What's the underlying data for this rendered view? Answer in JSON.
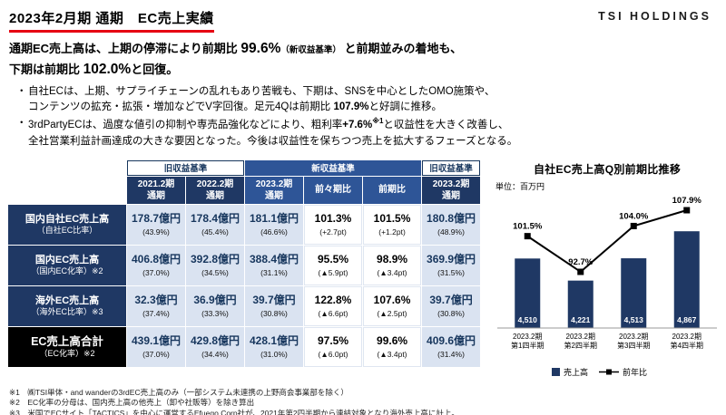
{
  "header": {
    "title": "2023年2月期 通期　EC売上実績",
    "logo": "TSI HOLDINGS"
  },
  "summary": {
    "headline1": [
      {
        "t": "通期EC売上高は、上期の停滞により前期比 "
      },
      {
        "t": "99.6%",
        "s": "big"
      },
      {
        "t": "（新収益基準）",
        "s": "small"
      },
      {
        "t": " と前期並みの着地も、"
      }
    ],
    "headline2": [
      {
        "t": "下期は前期比 "
      },
      {
        "t": "102.0%",
        "s": "big"
      },
      {
        "t": "と回復。"
      }
    ],
    "bullets": [
      [
        {
          "t": "自社ECは、上期、サプライチェーンの乱れもあり苦戦も、下期は、SNSを中心としたOMO施策や、"
        },
        {
          "br": true
        },
        {
          "t": "コンテンツの拡充・拡張・増加などでV字回復。足元4Qは前期比 "
        },
        {
          "t": "107.9%",
          "s": "b"
        },
        {
          "t": "と好調に推移。"
        }
      ],
      [
        {
          "t": "3rdPartyECは、過度な値引の抑制や専売品強化などにより、粗利率"
        },
        {
          "t": "+7.6%",
          "s": "b"
        },
        {
          "t": "※1",
          "s": "sup"
        },
        {
          "t": "と収益性を大きく改善し、"
        },
        {
          "br": true
        },
        {
          "t": "全社営業利益計画達成の大きな要因となった。今後は収益性を保ちつつ売上を拡大するフェーズとなる。"
        }
      ]
    ]
  },
  "table": {
    "group_headers": [
      {
        "label": "旧収益基準",
        "span": 2,
        "style": "old"
      },
      {
        "label": "新収益基準",
        "span": 3,
        "style": "new"
      },
      {
        "label": "旧収益基準",
        "span": 1,
        "style": "old"
      }
    ],
    "col_headers": [
      {
        "label": "2021.2期\n通期",
        "style": "old"
      },
      {
        "label": "2022.2期\n通期",
        "style": "old"
      },
      {
        "label": "2023.2期\n通期",
        "style": "new"
      },
      {
        "label": "前々期比",
        "style": "new"
      },
      {
        "label": "前期比",
        "style": "new"
      },
      {
        "label": "2023.2期\n通期",
        "style": "old"
      }
    ],
    "rows": [
      {
        "header": "国内自社EC売上高",
        "sub": "（自社EC比率）",
        "total": false,
        "cells": [
          {
            "v": "178.7億円",
            "s": "(43.9%)",
            "bg": "blue"
          },
          {
            "v": "178.4億円",
            "s": "(45.4%)",
            "bg": "blue"
          },
          {
            "v": "181.1億円",
            "s": "(46.6%)",
            "bg": "blue"
          },
          {
            "v": "101.3%",
            "s": "(+2.7pt)",
            "bg": "white"
          },
          {
            "v": "101.5%",
            "s": "(+1.2pt)",
            "bg": "white"
          },
          {
            "v": "180.8億円",
            "s": "(48.9%)",
            "bg": "blue"
          }
        ]
      },
      {
        "header": "国内EC売上高",
        "sub": "（国内EC化率）※2",
        "total": false,
        "cells": [
          {
            "v": "406.8億円",
            "s": "(37.0%)",
            "bg": "blue"
          },
          {
            "v": "392.8億円",
            "s": "(34.5%)",
            "bg": "blue"
          },
          {
            "v": "388.4億円",
            "s": "(31.1%)",
            "bg": "blue"
          },
          {
            "v": "95.5%",
            "s": "(▲5.9pt)",
            "bg": "white"
          },
          {
            "v": "98.9%",
            "s": "(▲3.4pt)",
            "bg": "white"
          },
          {
            "v": "369.9億円",
            "s": "(31.5%)",
            "bg": "blue"
          }
        ]
      },
      {
        "header": "海外EC売上高",
        "sub": "（海外EC比率）※3",
        "total": false,
        "cells": [
          {
            "v": "32.3億円",
            "s": "(37.4%)",
            "bg": "blue"
          },
          {
            "v": "36.9億円",
            "s": "(33.3%)",
            "bg": "blue"
          },
          {
            "v": "39.7億円",
            "s": "(30.8%)",
            "bg": "blue"
          },
          {
            "v": "122.8%",
            "s": "(▲6.6pt)",
            "bg": "white"
          },
          {
            "v": "107.6%",
            "s": "(▲2.5pt)",
            "bg": "white"
          },
          {
            "v": "39.7億円",
            "s": "(30.8%)",
            "bg": "blue"
          }
        ]
      },
      {
        "header": "EC売上高合計",
        "sub": "（EC化率）※2",
        "total": true,
        "cells": [
          {
            "v": "439.1億円",
            "s": "(37.0%)",
            "bg": "blue"
          },
          {
            "v": "429.8億円",
            "s": "(34.4%)",
            "bg": "blue"
          },
          {
            "v": "428.1億円",
            "s": "(31.0%)",
            "bg": "blue"
          },
          {
            "v": "97.5%",
            "s": "(▲6.0pt)",
            "bg": "white"
          },
          {
            "v": "99.6%",
            "s": "(▲3.4pt)",
            "bg": "white"
          },
          {
            "v": "409.6億円",
            "s": "(31.4%)",
            "bg": "blue"
          }
        ]
      }
    ]
  },
  "chart_data": {
    "type": "bar+line",
    "title": "自社EC売上高Q別前期比推移",
    "unit_label": "単位：百万円",
    "categories": [
      [
        "2023.2期",
        "第1四半期"
      ],
      [
        "2023.2期",
        "第2四半期"
      ],
      [
        "2023.2期",
        "第3四半期"
      ],
      [
        "2023.2期",
        "第4四半期"
      ]
    ],
    "bar_series": {
      "name": "売上高",
      "values": [
        4510,
        4221,
        4513,
        4867
      ],
      "labels": [
        "4,510",
        "4,221",
        "4,513",
        "4,867"
      ],
      "color": "#1f3864"
    },
    "line_series": {
      "name": "前年比",
      "values": [
        101.5,
        92.7,
        104.0,
        107.9
      ],
      "labels": [
        "101.5%",
        "92.7%",
        "104.0%",
        "107.9%"
      ],
      "color": "#000000"
    },
    "ylim_bars": [
      3600,
      5000
    ],
    "legend_position": "bottom"
  },
  "footnotes": [
    "※1　㈱TSI単体・and wanderの3rdEC売上高のみ（一部システム未連携の上野商会事業部を除く）",
    "※2　EC化率の分母は、国内売上高の他売上（卸や社販等）を除き算出",
    "※3　米国でECサイト「TACTICS」を中心に運営するEfuego Corp社が、2021年第2四半期から連結対象となり海外売上高に計上。"
  ],
  "colors": {
    "navy": "#1f3864",
    "bright_blue": "#2e5597",
    "light_blue": "#dae3f1",
    "accent_red": "#e60012",
    "total_black": "#000000"
  }
}
